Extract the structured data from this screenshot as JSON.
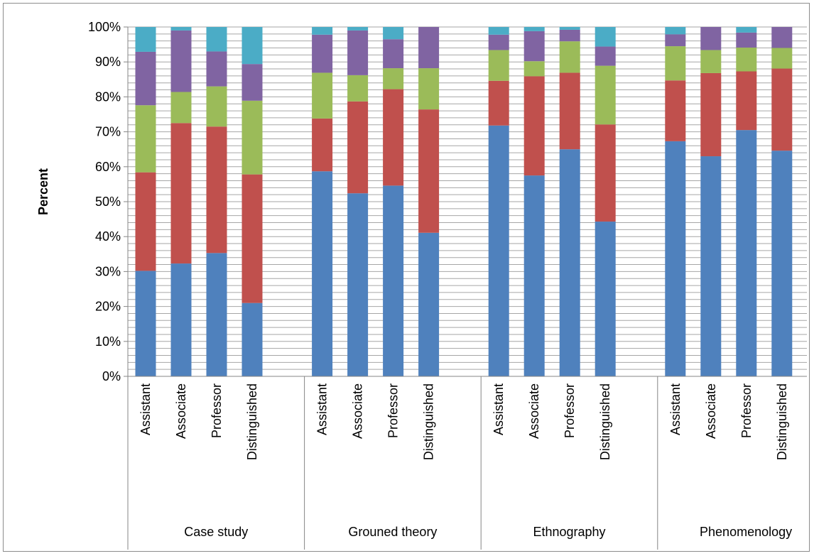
{
  "chart_data": {
    "type": "bar",
    "stacked": true,
    "percent_stacked": true,
    "ylabel": "Percent",
    "xlabel": "",
    "ylim": [
      0,
      100
    ],
    "y_ticks": [
      "0%",
      "10%",
      "20%",
      "30%",
      "40%",
      "50%",
      "60%",
      "70%",
      "80%",
      "90%",
      "100%"
    ],
    "grid": "horizontal minor gridlines every 2%",
    "legend": "none",
    "groups": [
      "Case study",
      "Grouned theory",
      "Ethnography",
      "Phenomenology"
    ],
    "subcategories": [
      "Assistant",
      "Associate",
      "Professor",
      "Distinguished"
    ],
    "series_colors": [
      "#4F81BD",
      "#C0504D",
      "#9BBB59",
      "#8064A2",
      "#4BACC6"
    ],
    "series": [
      {
        "values": [
          30.2,
          32.3,
          35.3,
          21.0,
          58.7,
          52.4,
          54.6,
          41.1,
          71.8,
          57.5,
          65.0,
          44.3,
          67.3,
          63.0,
          70.5,
          64.6
        ]
      },
      {
        "values": [
          28.2,
          40.2,
          36.2,
          36.8,
          15.1,
          26.3,
          27.6,
          35.3,
          12.8,
          28.4,
          21.9,
          27.8,
          17.4,
          23.8,
          16.8,
          23.5
        ]
      },
      {
        "values": [
          19.2,
          8.9,
          11.5,
          21.1,
          13.1,
          7.5,
          6.0,
          11.8,
          8.8,
          4.3,
          9.0,
          16.8,
          9.8,
          6.6,
          6.8,
          5.9
        ]
      },
      {
        "values": [
          15.3,
          17.6,
          10.0,
          10.5,
          10.9,
          12.8,
          8.3,
          11.8,
          4.4,
          8.6,
          3.3,
          5.5,
          3.4,
          6.6,
          4.3,
          6.0
        ]
      },
      {
        "values": [
          7.1,
          1.0,
          7.0,
          10.6,
          2.2,
          1.0,
          3.5,
          0.0,
          2.2,
          1.2,
          0.8,
          5.6,
          2.1,
          0.0,
          1.6,
          0.0
        ]
      }
    ]
  }
}
